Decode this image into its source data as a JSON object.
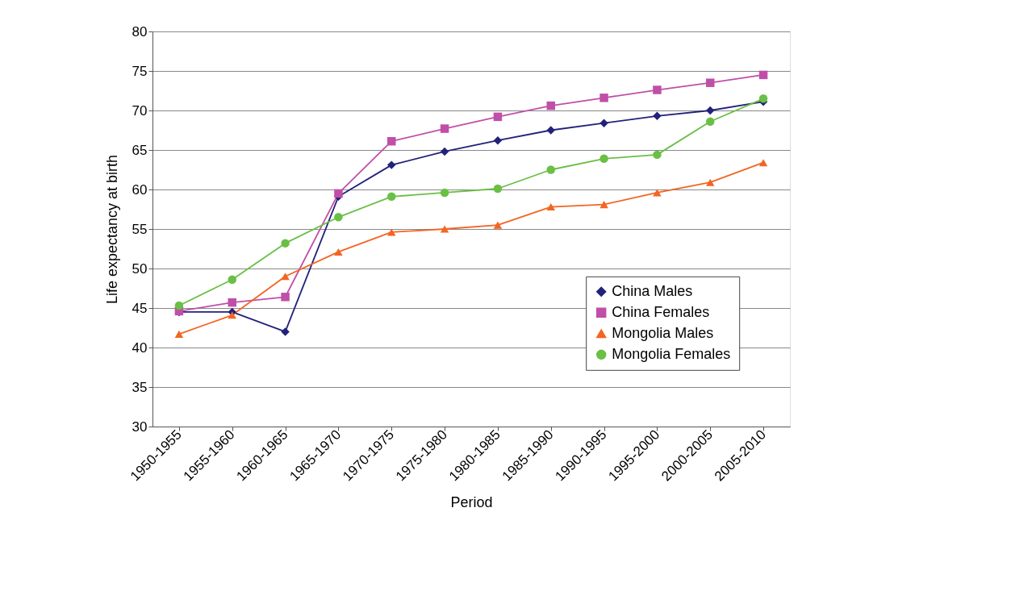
{
  "chart_data": {
    "type": "line",
    "xlabel": "Period",
    "ylabel": "Life expectancy at birth",
    "categories": [
      "1950-1955",
      "1955-1960",
      "1960-1965",
      "1965-1970",
      "1970-1975",
      "1975-1980",
      "1980-1985",
      "1985-1990",
      "1990-1995",
      "1995-2000",
      "2000-2005",
      "2005-2010"
    ],
    "series": [
      {
        "name": "China Males",
        "color": "#22227a",
        "marker": "diamond",
        "values": [
          44.5,
          44.5,
          42.0,
          59.1,
          63.1,
          64.8,
          66.2,
          67.5,
          68.4,
          69.3,
          70.0,
          71.1
        ]
      },
      {
        "name": "China Females",
        "color": "#c04fa8",
        "marker": "square",
        "values": [
          44.6,
          45.7,
          46.4,
          59.5,
          66.1,
          67.7,
          69.2,
          70.6,
          71.6,
          72.6,
          73.5,
          74.5
        ]
      },
      {
        "name": "Mongolia Males",
        "color": "#f26522",
        "marker": "triangle",
        "values": [
          41.7,
          44.1,
          49.0,
          52.1,
          54.6,
          55.0,
          55.5,
          57.8,
          58.1,
          59.6,
          60.9,
          63.4
        ]
      },
      {
        "name": "Mongolia Females",
        "color": "#6abf45",
        "marker": "circle",
        "values": [
          45.3,
          48.6,
          53.2,
          56.5,
          59.1,
          59.6,
          60.1,
          62.5,
          63.9,
          64.4,
          68.6,
          71.5
        ]
      }
    ],
    "ylim": [
      30,
      80
    ],
    "yticks": [
      30,
      35,
      40,
      45,
      50,
      55,
      60,
      65,
      70,
      75,
      80
    ],
    "grid": "y",
    "legend": "right",
    "line_style": "solid"
  }
}
